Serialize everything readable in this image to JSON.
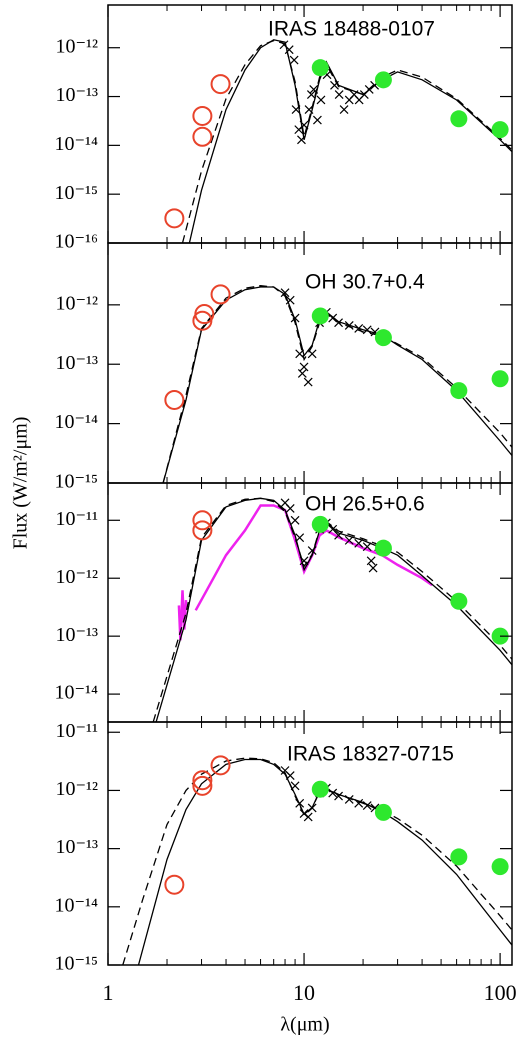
{
  "chart_data": [
    {
      "type": "line",
      "title": "IRAS 18488-0107",
      "log_x": true,
      "log_y": true,
      "ylim": [
        1e-16,
        7.5e-12
      ],
      "yticks": [
        {
          "value": 1e-16,
          "label": "10⁻¹⁶"
        },
        {
          "value": 1e-15,
          "label": "10⁻¹⁵"
        },
        {
          "value": 1e-14,
          "label": "10⁻¹⁴"
        },
        {
          "value": 1e-13,
          "label": "10⁻¹³"
        },
        {
          "value": 1e-12,
          "label": "10⁻¹²"
        }
      ],
      "series": [
        {
          "kind": "line",
          "color": "#000000",
          "x": [
            2.6,
            3,
            4,
            5,
            6,
            7,
            8,
            9,
            10,
            11,
            12,
            13,
            15,
            20,
            25,
            30,
            40,
            60,
            100,
            115
          ],
          "values": [
            1e-16,
            1.2e-15,
            5.4e-14,
            3.5e-13,
            1e-12,
            1.45e-12,
            1.3e-12,
            1.7e-13,
            1.3e-14,
            5.4e-14,
            2.2e-13,
            5.1e-13,
            1.7e-13,
            1.1e-13,
            2.2e-13,
            3.2e-13,
            2.2e-13,
            8.5e-14,
            1.3e-14,
            7.4e-15
          ]
        },
        {
          "kind": "dashed-line",
          "color": "#000000",
          "x": [
            2.4,
            3,
            4,
            5,
            6,
            7,
            8,
            9,
            10,
            11,
            12,
            13,
            15,
            20,
            25,
            30,
            40,
            60,
            100,
            115
          ],
          "values": [
            1e-16,
            3e-15,
            9e-14,
            4.5e-13,
            1.1e-12,
            1.4e-12,
            1.2e-12,
            2e-13,
            1.5e-14,
            6e-14,
            2.5e-13,
            4.5e-13,
            1.6e-13,
            1.1e-13,
            2.5e-13,
            3.5e-13,
            2.5e-13,
            9e-14,
            1.4e-14,
            8e-15
          ]
        },
        {
          "kind": "cross",
          "color": "#000000",
          "x": [
            7.9,
            8.4,
            8.9,
            9.1,
            9.4,
            9.7,
            10,
            10.6,
            10.9,
            11.2,
            11.7,
            12.2,
            13.1,
            14.3,
            15.1,
            16,
            17,
            18,
            19.1,
            20.3,
            21.5,
            22.9
          ],
          "values": [
            1.15e-12,
            9.1e-13,
            5.6e-13,
            5.4e-14,
            2.1e-14,
            1.3e-14,
            2.6e-14,
            5.4e-14,
            1.1e-13,
            1.4e-13,
            3.3e-14,
            8.5e-14,
            2.8e-13,
            1.7e-13,
            1.1e-13,
            5.4e-14,
            8.5e-14,
            1.1e-13,
            8.5e-14,
            1.1e-13,
            1.4e-13,
            1.7e-13
          ]
        },
        {
          "kind": "open-circle",
          "color": "#e8432b",
          "x": [
            2.18,
            3.03,
            3.03,
            3.75
          ],
          "values": [
            3.2e-16,
            4e-14,
            1.5e-14,
            1.8e-13
          ]
        },
        {
          "kind": "dot",
          "color": "#2ee82e",
          "x": [
            12.1,
            25.4,
            61.6,
            100
          ],
          "values": [
            3.9e-13,
            2.2e-13,
            3.5e-14,
            2.1e-14
          ]
        }
      ]
    },
    {
      "type": "line",
      "title": "OH 30.7+0.4",
      "log_x": true,
      "log_y": true,
      "ylim": [
        1e-15,
        1.1e-11
      ],
      "ylabel": "Flux (W/m²/μm)",
      "yticks": [
        {
          "value": 1e-15,
          "label": "10⁻¹⁵"
        },
        {
          "value": 1e-14,
          "label": "10⁻¹⁴"
        },
        {
          "value": 1e-13,
          "label": "10⁻¹³"
        },
        {
          "value": 1e-12,
          "label": "10⁻¹²"
        }
      ],
      "series": [
        {
          "kind": "line",
          "color": "#000000",
          "x": [
            1.91,
            2.5,
            3,
            4,
            5,
            6,
            7,
            8,
            9,
            10,
            11,
            12,
            13,
            15,
            20,
            25,
            30,
            40,
            60,
            100,
            115
          ],
          "values": [
            1e-15,
            2.5e-14,
            3.8e-13,
            1.2e-12,
            1.8e-12,
            2e-12,
            2e-12,
            1.5e-12,
            5.6e-13,
            1.4e-13,
            2.1e-13,
            5.6e-13,
            7.6e-13,
            5.2e-13,
            3.8e-13,
            3.1e-13,
            2.1e-13,
            1.2e-13,
            3.6e-14,
            5.1e-15,
            2.9e-15
          ]
        },
        {
          "kind": "dashed-line",
          "color": "#000000",
          "x": [
            1.91,
            2.5,
            3,
            4,
            5,
            6,
            7,
            8,
            9,
            10,
            11,
            12,
            13,
            15,
            20,
            25,
            30,
            40,
            60,
            100,
            115
          ],
          "values": [
            1e-15,
            3e-14,
            4e-13,
            1.3e-12,
            1.9e-12,
            2.1e-12,
            2e-12,
            1.4e-12,
            5e-13,
            1.2e-13,
            2e-13,
            5e-13,
            7e-13,
            5e-13,
            3.5e-13,
            3e-13,
            2.2e-13,
            1.3e-13,
            4e-14,
            7e-15,
            4e-15
          ]
        },
        {
          "kind": "cross",
          "color": "#000000",
          "x": [
            8,
            8.5,
            9,
            9.5,
            9.8,
            10,
            10.5,
            11,
            12,
            13,
            14,
            15,
            17,
            19,
            21,
            23
          ],
          "values": [
            1.6e-12,
            1.2e-12,
            6e-13,
            1.5e-13,
            7e-14,
            9e-14,
            5e-14,
            1.5e-13,
            5e-13,
            7.5e-13,
            6e-13,
            5e-13,
            4.5e-13,
            4e-13,
            3.8e-13,
            3.5e-13
          ]
        },
        {
          "kind": "open-circle",
          "color": "#e8432b",
          "x": [
            2.18,
            3.03,
            3.1,
            3.75
          ],
          "values": [
            2.5e-14,
            5.4e-13,
            7e-13,
            1.5e-12
          ]
        },
        {
          "kind": "dot",
          "color": "#2ee82e",
          "x": [
            12.1,
            25.4,
            61.6,
            100
          ],
          "values": [
            6.5e-13,
            2.8e-13,
            3.6e-14,
            5.7e-14
          ]
        }
      ]
    },
    {
      "type": "line",
      "title": "OH 26.5+0.6",
      "log_x": true,
      "log_y": true,
      "ylim": [
        3.3e-15,
        4.4e-11
      ],
      "yticks": [
        {
          "value": 1e-14,
          "label": "10⁻¹⁴"
        },
        {
          "value": 1e-13,
          "label": "10⁻¹³"
        },
        {
          "value": 1e-12,
          "label": "10⁻¹²"
        },
        {
          "value": 1e-11,
          "label": "10⁻¹¹"
        }
      ],
      "series": [
        {
          "kind": "line",
          "color": "#ee22ee",
          "width": 2.5,
          "x": [
            2.3,
            2.34,
            2.4,
            2.45,
            2.5,
            null,
            2.8,
            3.5,
            4,
            5,
            6,
            7,
            8,
            9,
            10,
            11,
            12,
            13,
            15,
            20,
            25,
            30,
            40,
            45
          ],
          "values": [
            3.4e-13,
            8.5e-14,
            6.2e-13,
            1.3e-13,
            4.2e-13,
            null,
            2.8e-13,
            1.1e-12,
            2.5e-12,
            6.7e-12,
            1.8e-11,
            1.8e-11,
            1.5e-11,
            4.5e-12,
            1.3e-12,
            2.5e-12,
            5.5e-12,
            6.7e-12,
            5.1e-12,
            3.3e-12,
            2.5e-12,
            1.7e-12,
            1e-12,
            7.6e-13
          ]
        },
        {
          "kind": "line",
          "color": "#000000",
          "x": [
            1.76,
            2.5,
            3,
            4,
            5,
            6,
            7,
            8,
            9,
            10,
            11,
            12,
            13,
            15,
            20,
            25,
            30,
            40,
            60,
            100,
            115
          ],
          "values": [
            3.3e-15,
            1.9e-13,
            4.5e-12,
            1.7e-11,
            2.2e-11,
            2.4e-11,
            2.2e-11,
            1.5e-11,
            5.5e-12,
            1.4e-12,
            2.5e-12,
            6.7e-12,
            9.3e-12,
            6e-12,
            4.5e-12,
            3.3e-12,
            2.5e-12,
            1.1e-12,
            3.4e-13,
            5.7e-14,
            3.2e-14
          ]
        },
        {
          "kind": "dashed-line",
          "color": "#000000",
          "x": [
            1.7,
            2.5,
            3,
            4,
            5,
            6,
            7,
            8,
            9,
            10,
            11,
            12,
            13,
            15,
            20,
            25,
            30,
            40,
            60,
            100,
            115
          ],
          "values": [
            3.3e-15,
            2.5e-13,
            5e-12,
            1.8e-11,
            2.3e-11,
            2.4e-11,
            2.1e-11,
            1.4e-11,
            5e-12,
            1.6e-12,
            2.6e-12,
            7e-12,
            9.5e-12,
            6.5e-12,
            4.8e-12,
            3.6e-12,
            2.8e-12,
            1.3e-12,
            4e-13,
            7e-14,
            4e-14
          ]
        },
        {
          "kind": "cross",
          "color": "#000000",
          "x": [
            8,
            8.5,
            9,
            9.5,
            10,
            11,
            12,
            13,
            14,
            15,
            17,
            19,
            21,
            22,
            22.5,
            24
          ],
          "values": [
            2e-11,
            1.6e-11,
            1e-11,
            5e-12,
            2e-12,
            3e-12,
            7e-12,
            9e-12,
            7e-12,
            5.5e-12,
            4.5e-12,
            4e-12,
            3.5e-12,
            2e-12,
            1.5e-12,
            3.5e-12
          ]
        },
        {
          "kind": "open-circle",
          "color": "#e8432b",
          "x": [
            3.03,
            3.03
          ],
          "values": [
            1e-11,
            6.7e-12
          ]
        },
        {
          "kind": "dot",
          "color": "#2ee82e",
          "x": [
            12.1,
            25.4,
            61.6,
            100
          ],
          "values": [
            8.5e-12,
            3.3e-12,
            4e-13,
            1e-13
          ]
        }
      ]
    },
    {
      "type": "line",
      "title": "IRAS 18327-0715",
      "log_x": true,
      "log_y": true,
      "ylim": [
        1e-15,
        1.5e-11
      ],
      "xlim": [
        1,
        115
      ],
      "xlabel": "λ(μm)",
      "xticks": [
        1,
        10,
        100
      ],
      "xminorticks": [
        2,
        3,
        4,
        5,
        6,
        7,
        8,
        9,
        20,
        30,
        40,
        50,
        60,
        70,
        80,
        90
      ],
      "yticks": [
        {
          "value": 1e-15,
          "label": "10⁻¹⁵"
        },
        {
          "value": 1e-14,
          "label": "10⁻¹⁴"
        },
        {
          "value": 1e-13,
          "label": "10⁻¹³"
        },
        {
          "value": 1e-12,
          "label": "10⁻¹²"
        },
        {
          "value": 1e-11,
          "label": "10⁻¹¹"
        }
      ],
      "series": [
        {
          "kind": "line",
          "color": "#000000",
          "x": [
            1.43,
            2,
            2.5,
            3,
            4,
            5,
            6,
            7,
            8,
            9,
            10,
            11,
            12,
            13,
            15,
            20,
            25,
            30,
            40,
            60,
            100,
            115
          ],
          "values": [
            1e-15,
            6.5e-14,
            4.7e-13,
            1.3e-12,
            2.8e-12,
            3.4e-12,
            3.4e-12,
            2.8e-12,
            1.9e-12,
            8.5e-13,
            3.9e-13,
            5.1e-13,
            9.6e-13,
            1.05e-12,
            8.5e-13,
            6.2e-13,
            4.3e-13,
            2.9e-13,
            1.4e-13,
            3.6e-14,
            4e-15,
            2.2e-15
          ]
        },
        {
          "kind": "dashed-line",
          "color": "#000000",
          "x": [
            1.19,
            1.5,
            2,
            2.5,
            3,
            4,
            5,
            6,
            7,
            8,
            9,
            10,
            11,
            12,
            13,
            15,
            20,
            25,
            30,
            40,
            60,
            100,
            115
          ],
          "values": [
            1e-15,
            1.3e-14,
            2.6e-13,
            1e-12,
            1.9e-12,
            3.2e-12,
            3.6e-12,
            3.5e-12,
            3e-12,
            2e-12,
            8e-13,
            3.8e-13,
            5e-13,
            9.5e-13,
            1.05e-12,
            8.5e-13,
            6e-13,
            4.6e-13,
            3.3e-13,
            1.7e-13,
            5e-14,
            7e-15,
            4e-15
          ]
        },
        {
          "kind": "cross",
          "color": "#000000",
          "x": [
            8,
            8.5,
            9,
            9.5,
            10,
            10.5,
            11,
            12,
            13,
            14,
            15,
            17,
            19,
            21,
            23
          ],
          "values": [
            2.2e-12,
            1.8e-12,
            1.2e-12,
            6e-13,
            4e-13,
            3.5e-13,
            5e-13,
            9e-13,
            1.1e-12,
            9e-13,
            8e-13,
            7e-13,
            6e-13,
            5.5e-13,
            5e-13
          ]
        },
        {
          "kind": "open-circle",
          "color": "#e8432b",
          "x": [
            2.18,
            3.03,
            3.03,
            3.75
          ],
          "values": [
            2.4e-14,
            1.5e-12,
            1.2e-12,
            2.7e-12
          ]
        },
        {
          "kind": "dot",
          "color": "#2ee82e",
          "x": [
            12.1,
            25.4,
            61.6,
            100
          ],
          "values": [
            1.05e-12,
            4.2e-13,
            7.2e-14,
            4.9e-14
          ]
        }
      ]
    }
  ]
}
